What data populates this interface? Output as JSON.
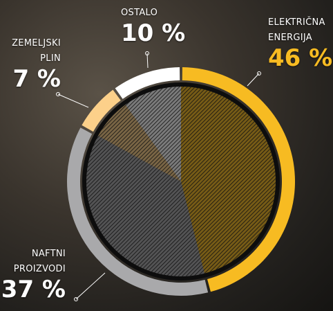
{
  "chart_data": {
    "type": "donut",
    "categories": [
      "ELEKTRIČNA ENERGIJA",
      "NAFTNI PROIZVODI",
      "ZEMELJSKI PLIN",
      "OSTALO"
    ],
    "values": [
      46,
      37,
      7,
      10
    ],
    "value_labels": [
      "46 %",
      "37 %",
      "7 %",
      "10 %"
    ],
    "colors": [
      "#f7bb22",
      "#a9a9ab",
      "#fcd08a",
      "#ffffff"
    ]
  }
}
